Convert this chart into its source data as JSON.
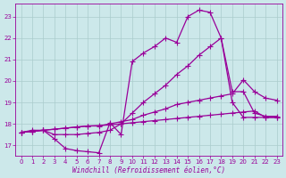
{
  "xlabel": "Windchill (Refroidissement éolien,°C)",
  "bg_color": "#cce8ea",
  "grid_color": "#aacccc",
  "line_color": "#990099",
  "xmin": -0.5,
  "xmax": 23.5,
  "ymin": 16.5,
  "ymax": 23.6,
  "yticks": [
    17,
    18,
    19,
    20,
    21,
    22,
    23
  ],
  "xticks": [
    0,
    1,
    2,
    3,
    4,
    5,
    6,
    7,
    8,
    9,
    10,
    11,
    12,
    13,
    14,
    15,
    16,
    17,
    18,
    19,
    20,
    21,
    22,
    23
  ],
  "line1_x": [
    0,
    1,
    2,
    3,
    4,
    5,
    6,
    7,
    8,
    9,
    10,
    11,
    12,
    13,
    14,
    15,
    16,
    17,
    18,
    19,
    20,
    21,
    22,
    23
  ],
  "line1_y": [
    17.6,
    17.7,
    17.7,
    17.3,
    16.85,
    16.75,
    16.7,
    16.65,
    18.05,
    17.5,
    20.9,
    21.3,
    21.6,
    22.0,
    21.8,
    23.0,
    23.3,
    23.2,
    22.0,
    19.0,
    18.3,
    18.3,
    18.3,
    18.3
  ],
  "line2_x": [
    0,
    1,
    2,
    3,
    4,
    5,
    6,
    7,
    8,
    9,
    10,
    11,
    12,
    13,
    14,
    15,
    16,
    17,
    18,
    19,
    20,
    21,
    22,
    23
  ],
  "line2_y": [
    17.6,
    17.65,
    17.7,
    17.5,
    17.5,
    17.5,
    17.55,
    17.6,
    17.7,
    18.0,
    18.5,
    19.0,
    19.4,
    19.8,
    20.3,
    20.7,
    21.2,
    21.6,
    22.0,
    19.5,
    19.5,
    18.5,
    18.35,
    18.35
  ],
  "line3_x": [
    0,
    1,
    2,
    3,
    4,
    5,
    6,
    7,
    8,
    9,
    10,
    11,
    12,
    13,
    14,
    15,
    16,
    17,
    18,
    19,
    20,
    21,
    22,
    23
  ],
  "line3_y": [
    17.6,
    17.65,
    17.7,
    17.75,
    17.8,
    17.85,
    17.9,
    17.9,
    18.0,
    18.1,
    18.2,
    18.4,
    18.55,
    18.7,
    18.9,
    19.0,
    19.1,
    19.2,
    19.3,
    19.4,
    20.05,
    19.5,
    19.2,
    19.1
  ],
  "line4_x": [
    0,
    1,
    2,
    3,
    4,
    5,
    6,
    7,
    8,
    9,
    10,
    11,
    12,
    13,
    14,
    15,
    16,
    17,
    18,
    19,
    20,
    21,
    22,
    23
  ],
  "line4_y": [
    17.6,
    17.65,
    17.7,
    17.75,
    17.8,
    17.85,
    17.9,
    17.92,
    17.95,
    18.0,
    18.05,
    18.1,
    18.15,
    18.2,
    18.25,
    18.3,
    18.35,
    18.4,
    18.45,
    18.5,
    18.55,
    18.6,
    18.3,
    18.3
  ]
}
